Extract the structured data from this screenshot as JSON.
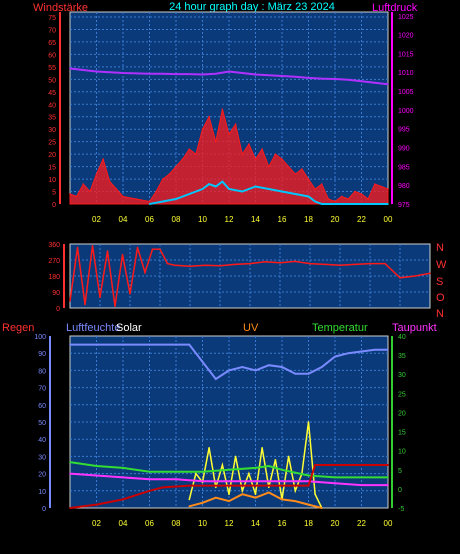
{
  "colors": {
    "background": "#000000",
    "plot_bg": "#0a3a7a",
    "grid": "#3a7ad0",
    "frame": "#d0d0d0",
    "wind": "#ff1a1a",
    "gust_cyan": "#00c8ff",
    "gust_light": "#c8ffff",
    "pressure": "#b030ff",
    "pressure_label": "#ff00ff",
    "wind_dir": "#ff1a1a",
    "humidity": "#7a8aff",
    "solar": "#ffff33",
    "uv": "#ff8c1a",
    "temperature": "#33dd33",
    "dewpoint": "#ff33ff",
    "rain": "#cc0000",
    "title": "#00ffff",
    "axis_red": "#ff3030",
    "axis_green": "#33cc33",
    "x_tick": "#ffff33"
  },
  "header": {
    "wind_label": "Windstärke",
    "title": "24 hour graph day : März 23 2024",
    "pressure_label": "Luftdruck"
  },
  "lower_header": {
    "rain": "Regen",
    "humidity": "Luftfeuchte",
    "solar": "Solar",
    "uv": "UV",
    "temperature": "Temperatur",
    "dewpoint": "Taupunkt"
  },
  "compass": [
    "N",
    "W",
    "S",
    "O",
    "N"
  ],
  "chart_data": [
    {
      "type": "line",
      "name": "wind-pressure",
      "x_ticks": [
        "02",
        "04",
        "06",
        "08",
        "10",
        "12",
        "14",
        "16",
        "18",
        "20",
        "22",
        "00"
      ],
      "left_axis": {
        "ticks": [
          "0",
          "5",
          "10",
          "15",
          "20",
          "25",
          "30",
          "35",
          "40",
          "45",
          "50",
          "55",
          "60",
          "65",
          "70",
          "75"
        ],
        "ylim": [
          0,
          77
        ]
      },
      "right_axis": {
        "ticks": [
          "975",
          "980",
          "985",
          "990",
          "995",
          "1000",
          "1005",
          "1010",
          "1015",
          "1020",
          "1025"
        ],
        "ylim": [
          975,
          1026
        ]
      },
      "series": [
        {
          "name": "Windstärke",
          "axis": "left",
          "x": [
            0,
            0.5,
            1,
            1.5,
            2,
            2.5,
            3,
            3.5,
            4,
            5,
            6,
            6.5,
            7,
            7.5,
            8,
            8.5,
            9,
            9.5,
            10,
            10.5,
            11,
            11.5,
            12,
            12.5,
            13,
            13.5,
            14,
            14.5,
            15,
            15.5,
            16,
            16.5,
            17,
            17.5,
            18,
            18.5,
            19,
            19.5,
            20,
            20.5,
            21,
            21.5,
            22,
            22.5,
            23,
            23.5,
            24
          ],
          "y": [
            4,
            3,
            8,
            5,
            12,
            18,
            9,
            6,
            3,
            2,
            1,
            5,
            10,
            12,
            15,
            18,
            22,
            20,
            30,
            35,
            25,
            38,
            28,
            32,
            20,
            24,
            18,
            22,
            15,
            20,
            18,
            15,
            12,
            14,
            10,
            6,
            8,
            2,
            1,
            3,
            2,
            5,
            4,
            2,
            8,
            7,
            6
          ]
        },
        {
          "name": "Böen",
          "axis": "left",
          "x": [
            6,
            7,
            8,
            9,
            10,
            10.5,
            11,
            11.5,
            12,
            13,
            14,
            15,
            16,
            17,
            18,
            18.5,
            19,
            20,
            21,
            22,
            23,
            24
          ],
          "y": [
            0,
            1,
            2,
            4,
            6,
            8,
            7,
            9,
            6,
            5,
            7,
            6,
            5,
            4,
            3,
            1,
            0,
            0,
            0,
            0,
            0,
            0
          ]
        },
        {
          "name": "Luftdruck",
          "axis": "right",
          "x": [
            0,
            1,
            2,
            3,
            4,
            5,
            6,
            7,
            8,
            9,
            10,
            11,
            12,
            13,
            14,
            15,
            16,
            17,
            18,
            19,
            20,
            21,
            22,
            23,
            24
          ],
          "y": [
            1011,
            1010.6,
            1010.2,
            1010,
            1009.8,
            1009.7,
            1009.6,
            1009.6,
            1009.5,
            1009.5,
            1009.4,
            1009.6,
            1010.2,
            1009.8,
            1009.4,
            1009.2,
            1009.0,
            1008.8,
            1008.5,
            1008.3,
            1008.2,
            1008.0,
            1007.6,
            1007.2,
            1006.8
          ]
        }
      ]
    },
    {
      "type": "line",
      "name": "wind-direction",
      "x_ticks": [],
      "left_axis": {
        "ticks": [
          "0",
          "90",
          "180",
          "270",
          "360"
        ],
        "ylim": [
          0,
          360
        ]
      },
      "series": [
        {
          "name": "Windrichtung",
          "x": [
            0,
            0.5,
            1,
            1.5,
            2,
            2.5,
            3,
            3.5,
            4,
            4.5,
            5,
            5.5,
            6,
            6.5,
            7,
            8,
            9,
            10,
            11,
            12,
            13,
            14,
            15,
            16,
            17,
            18,
            19,
            20,
            21,
            22,
            23,
            24
          ],
          "y": [
            40,
            340,
            20,
            350,
            60,
            320,
            10,
            300,
            80,
            340,
            200,
            330,
            330,
            250,
            240,
            235,
            240,
            238,
            245,
            250,
            260,
            255,
            262,
            250,
            245,
            240,
            245,
            250,
            250,
            170,
            180,
            195
          ]
        }
      ]
    },
    {
      "type": "line",
      "name": "rain-humidity-solar-uv-temperature",
      "x_ticks": [
        "02",
        "04",
        "06",
        "08",
        "10",
        "12",
        "14",
        "16",
        "18",
        "20",
        "22",
        "00"
      ],
      "left_axis": {
        "ticks": [
          "0",
          "10",
          "20",
          "30",
          "40",
          "50",
          "60",
          "70",
          "80",
          "90",
          "100"
        ],
        "ylim": [
          0,
          100
        ]
      },
      "right_axis": {
        "ticks": [
          "-5",
          "0",
          "5",
          "10",
          "15",
          "20",
          "25",
          "30",
          "35",
          "40"
        ],
        "ylim": [
          -5,
          40
        ]
      },
      "series": [
        {
          "name": "Luftfeuchte",
          "axis": "left",
          "x": [
            0,
            2,
            4,
            6,
            8,
            9,
            10,
            11,
            12,
            13,
            14,
            15,
            16,
            17,
            18,
            19,
            20,
            21,
            22,
            23,
            24
          ],
          "y": [
            95,
            95,
            95,
            95,
            95,
            95,
            85,
            75,
            80,
            82,
            80,
            83,
            82,
            78,
            78,
            82,
            88,
            90,
            91,
            92,
            92
          ]
        },
        {
          "name": "Solar",
          "axis": "left",
          "x": [
            9,
            9.5,
            10,
            10.5,
            11,
            11.5,
            12,
            12.5,
            13,
            13.5,
            14,
            14.5,
            15,
            15.5,
            16,
            16.5,
            17,
            17.5,
            18,
            18.5,
            19
          ],
          "y": [
            5,
            20,
            15,
            35,
            12,
            25,
            8,
            30,
            10,
            20,
            8,
            35,
            12,
            28,
            5,
            30,
            10,
            20,
            50,
            8,
            0
          ]
        },
        {
          "name": "UV",
          "axis": "left",
          "x": [
            9,
            10,
            11,
            12,
            13,
            14,
            15,
            16,
            17,
            18,
            19
          ],
          "y": [
            1,
            3,
            6,
            4,
            8,
            6,
            9,
            5,
            4,
            2,
            0
          ]
        },
        {
          "name": "Temperatur",
          "axis": "right",
          "x": [
            0,
            2,
            4,
            6,
            8,
            10,
            12,
            14,
            15,
            16,
            18,
            20,
            22,
            24
          ],
          "y": [
            7,
            6,
            5.5,
            4.5,
            4.5,
            4.5,
            5,
            5.5,
            6,
            5,
            3.5,
            3,
            3,
            3
          ]
        },
        {
          "name": "Taupunkt",
          "axis": "right",
          "x": [
            0,
            2,
            4,
            6,
            8,
            10,
            12,
            14,
            16,
            18,
            20,
            22,
            24
          ],
          "y": [
            4,
            3.5,
            3,
            2.5,
            2.5,
            2,
            2,
            2,
            2,
            2,
            1.5,
            1,
            1
          ]
        },
        {
          "name": "Regen",
          "axis": "left",
          "x": [
            0,
            2,
            4,
            6,
            7,
            9,
            12,
            18,
            18.5,
            24
          ],
          "y": [
            0,
            2,
            5,
            10,
            12,
            13,
            13,
            13,
            25,
            25
          ]
        }
      ]
    }
  ]
}
